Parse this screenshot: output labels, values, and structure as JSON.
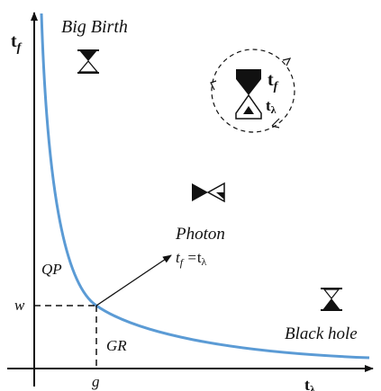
{
  "title": "Big Birth",
  "axes": {
    "y_label": {
      "main": "t",
      "sub": "f"
    },
    "x_label": {
      "main": "t",
      "sub": "λ"
    },
    "w": "w",
    "g": "g"
  },
  "regions": {
    "qp": "QP",
    "gr": "GR"
  },
  "photon": {
    "label": "Photon",
    "eq_left": {
      "main": "t",
      "sub": "f"
    },
    "eq_sign": " =",
    "eq_right": {
      "main": "t",
      "sub": "λ"
    }
  },
  "black_hole": "Black hole",
  "cycle": {
    "top": {
      "main": "t",
      "sub": "f"
    },
    "bottom": {
      "main": "t",
      "sub": "λ"
    }
  }
}
